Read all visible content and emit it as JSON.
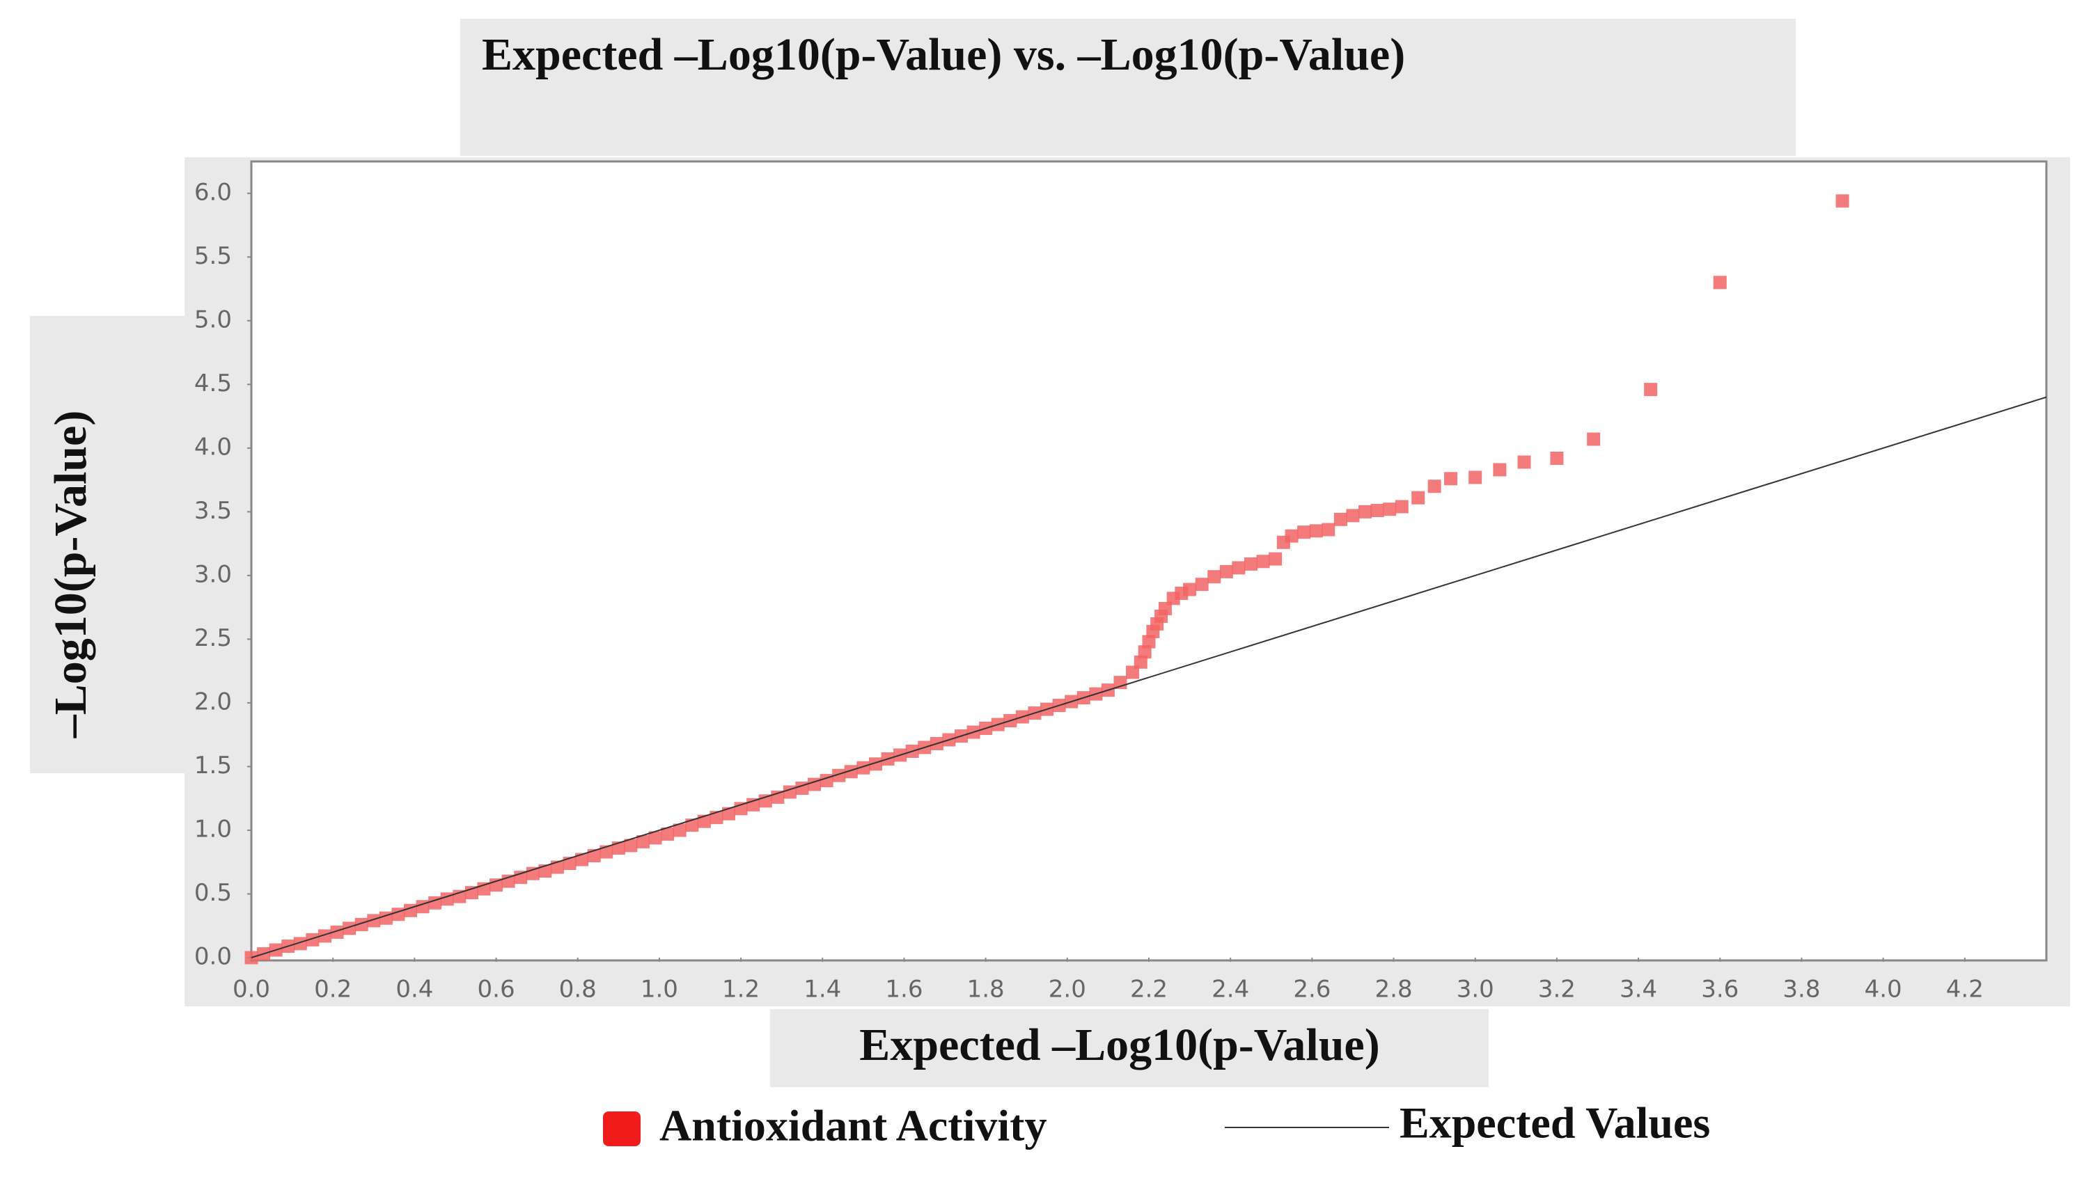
{
  "chart_data": {
    "type": "scatter",
    "title": "Expected –Log10(p-Value) vs. –Log10(p-Value)",
    "x_label": "Expected –Log10(p-Value)",
    "y_label": "–Log10(p-Value)",
    "xlim": [
      0,
      4.4
    ],
    "ylim": [
      0,
      6.25
    ],
    "xticks": [
      {
        "value": 0,
        "label": "0.0"
      },
      {
        "value": 0.2,
        "label": "0.2"
      },
      {
        "value": 0.4,
        "label": "0.4"
      },
      {
        "value": 0.6,
        "label": "0.6"
      },
      {
        "value": 0.8,
        "label": "0.8"
      },
      {
        "value": 1,
        "label": "1.0"
      },
      {
        "value": 1.2,
        "label": "1.2"
      },
      {
        "value": 1.4,
        "label": "1.4"
      },
      {
        "value": 1.6,
        "label": "1.6"
      },
      {
        "value": 1.8,
        "label": "1.8"
      },
      {
        "value": 2,
        "label": "2.0"
      },
      {
        "value": 2.2,
        "label": "2.2"
      },
      {
        "value": 2.4,
        "label": "2.4"
      },
      {
        "value": 2.6,
        "label": "2.6"
      },
      {
        "value": 2.8,
        "label": "2.8"
      },
      {
        "value": 3,
        "label": "3.0"
      },
      {
        "value": 3.2,
        "label": "3.2"
      },
      {
        "value": 3.4,
        "label": "3.4"
      },
      {
        "value": 3.6,
        "label": "3.6"
      },
      {
        "value": 3.8,
        "label": "3.8"
      },
      {
        "value": 4,
        "label": "4.0"
      },
      {
        "value": 4.2,
        "label": "4.2"
      }
    ],
    "yticks": [
      {
        "value": 0,
        "label": "0.0"
      },
      {
        "value": 0.5,
        "label": "0.5"
      },
      {
        "value": 1,
        "label": "1.0"
      },
      {
        "value": 1.5,
        "label": "1.5"
      },
      {
        "value": 2,
        "label": "2.0"
      },
      {
        "value": 2.5,
        "label": "2.5"
      },
      {
        "value": 3,
        "label": "3.0"
      },
      {
        "value": 3.5,
        "label": "3.5"
      },
      {
        "value": 4,
        "label": "4.0"
      },
      {
        "value": 4.5,
        "label": "4.5"
      },
      {
        "value": 5,
        "label": "5.0"
      },
      {
        "value": 5.5,
        "label": "5.5"
      },
      {
        "value": 6,
        "label": "6.0"
      }
    ],
    "grid": false,
    "series": [
      {
        "name": "Antioxidant Activity",
        "color": "#f26464",
        "mark": "square",
        "x": [
          0,
          0.03,
          0.06,
          0.09,
          0.12,
          0.15,
          0.18,
          0.21,
          0.24,
          0.27,
          0.3,
          0.33,
          0.36,
          0.39,
          0.42,
          0.45,
          0.48,
          0.51,
          0.54,
          0.57,
          0.6,
          0.63,
          0.66,
          0.69,
          0.72,
          0.75,
          0.78,
          0.81,
          0.84,
          0.87,
          0.9,
          0.93,
          0.96,
          0.99,
          1.02,
          1.05,
          1.08,
          1.11,
          1.14,
          1.17,
          1.2,
          1.23,
          1.26,
          1.29,
          1.32,
          1.35,
          1.38,
          1.41,
          1.44,
          1.47,
          1.5,
          1.53,
          1.56,
          1.59,
          1.62,
          1.65,
          1.68,
          1.71,
          1.74,
          1.77,
          1.8,
          1.83,
          1.86,
          1.89,
          1.92,
          1.95,
          1.98,
          2.01,
          2.04,
          2.07,
          2.1,
          2.13,
          2.16,
          2.18,
          2.19,
          2.2,
          2.21,
          2.22,
          2.23,
          2.24,
          2.26,
          2.28,
          2.3,
          2.33,
          2.36,
          2.39,
          2.42,
          2.45,
          2.48,
          2.51,
          2.53,
          2.55,
          2.58,
          2.61,
          2.64,
          2.67,
          2.7,
          2.73,
          2.76,
          2.79,
          2.82,
          2.86,
          2.9,
          2.94,
          3,
          3.06,
          3.12,
          3.2,
          3.29,
          3.43,
          3.6,
          3.9
        ],
        "values": [
          0,
          0.03,
          0.06,
          0.09,
          0.11,
          0.14,
          0.17,
          0.2,
          0.23,
          0.26,
          0.29,
          0.31,
          0.34,
          0.37,
          0.4,
          0.43,
          0.46,
          0.48,
          0.51,
          0.54,
          0.57,
          0.6,
          0.63,
          0.66,
          0.68,
          0.71,
          0.74,
          0.77,
          0.8,
          0.83,
          0.86,
          0.88,
          0.91,
          0.94,
          0.97,
          1,
          1.04,
          1.07,
          1.1,
          1.13,
          1.17,
          1.2,
          1.23,
          1.26,
          1.3,
          1.33,
          1.36,
          1.39,
          1.43,
          1.46,
          1.49,
          1.52,
          1.56,
          1.59,
          1.62,
          1.65,
          1.68,
          1.71,
          1.74,
          1.77,
          1.8,
          1.83,
          1.86,
          1.89,
          1.92,
          1.95,
          1.98,
          2.01,
          2.04,
          2.07,
          2.1,
          2.16,
          2.24,
          2.32,
          2.4,
          2.48,
          2.56,
          2.62,
          2.68,
          2.74,
          2.82,
          2.86,
          2.89,
          2.93,
          2.99,
          3.03,
          3.06,
          3.09,
          3.11,
          3.13,
          3.26,
          3.31,
          3.34,
          3.35,
          3.36,
          3.44,
          3.47,
          3.5,
          3.51,
          3.52,
          3.54,
          3.61,
          3.7,
          3.76,
          3.77,
          3.83,
          3.89,
          3.92,
          4.07,
          4.46,
          5.3,
          5.94
        ]
      },
      {
        "name": "Expected Values",
        "color": "#333333",
        "mark": "line",
        "x": [
          0,
          4.4
        ],
        "values": [
          0,
          4.4
        ]
      }
    ]
  }
}
